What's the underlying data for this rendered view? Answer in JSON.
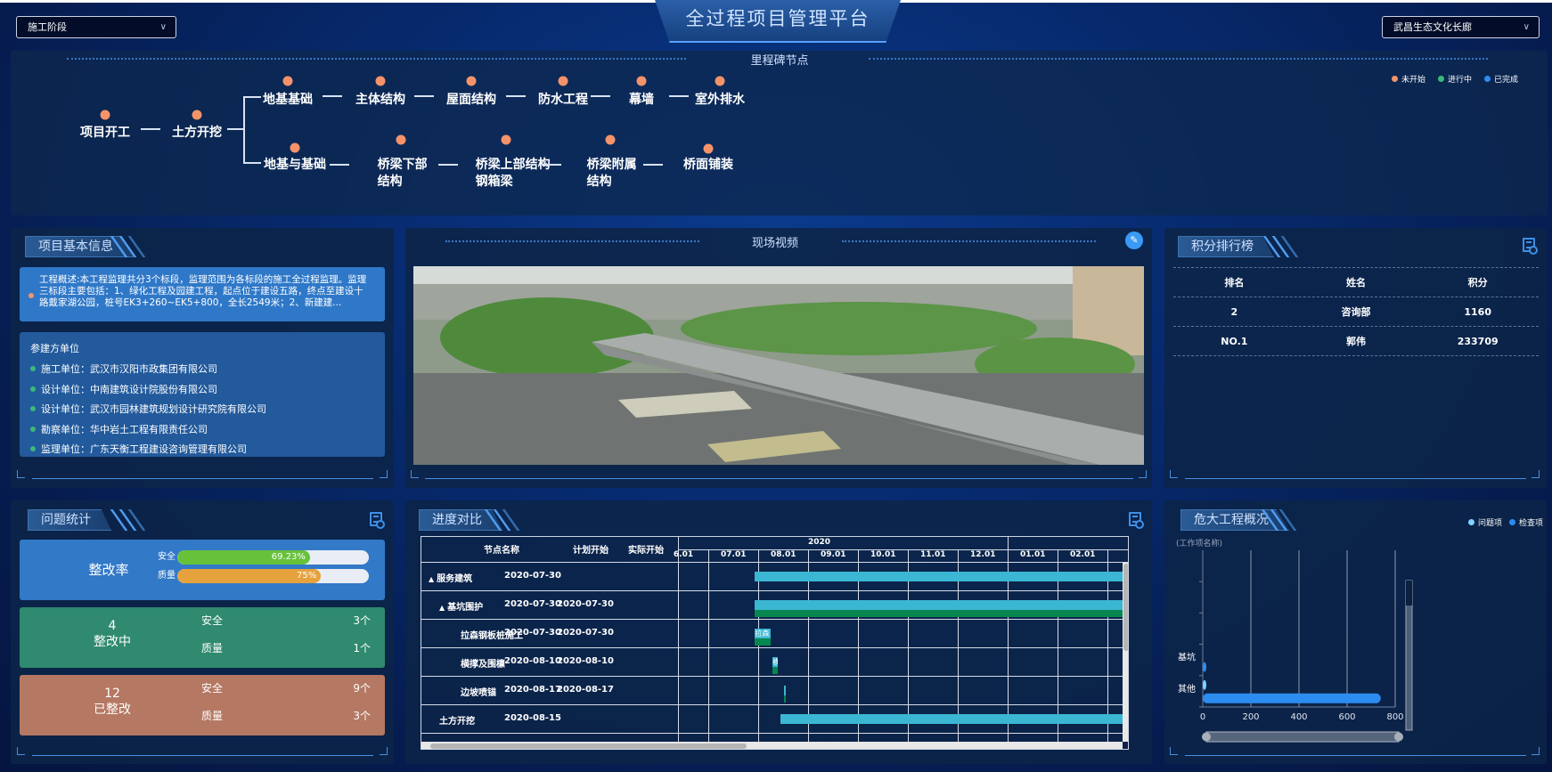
{
  "header": {
    "title": "全过程项目管理平台",
    "stage_select": "施工阶段",
    "project_select": "武昌生态文化长廊"
  },
  "milestones": {
    "title": "里程碑节点",
    "legend": [
      {
        "label": "未开始",
        "color": "#f4936a"
      },
      {
        "label": "进行中",
        "color": "#3cb878"
      },
      {
        "label": "已完成",
        "color": "#2f8cf0"
      }
    ],
    "trunk": [
      {
        "label": "项目开工",
        "status": "未开始"
      },
      {
        "label": "土方开挖",
        "status": "未开始"
      }
    ],
    "branch_top": [
      {
        "label": "地基基础",
        "status": "未开始"
      },
      {
        "label": "主体结构",
        "status": "未开始"
      },
      {
        "label": "屋面结构",
        "status": "未开始"
      },
      {
        "label": "防水工程",
        "status": "未开始"
      },
      {
        "label": "幕墙",
        "status": "未开始"
      },
      {
        "label": "室外排水",
        "status": "未开始"
      }
    ],
    "branch_bottom": [
      {
        "label": "地基与基础",
        "status": "未开始"
      },
      {
        "label": "桥梁下部结构",
        "status": "未开始"
      },
      {
        "label": "桥梁上部结构钢箱梁",
        "status": "未开始"
      },
      {
        "label": "桥梁附属结构",
        "status": "未开始"
      },
      {
        "label": "桥面铺装",
        "status": "未开始"
      }
    ]
  },
  "project_info": {
    "title": "项目基本信息",
    "overview": "工程概述:本工程监理共分3个标段，监理范围为各标段的施工全过程监理。监理三标段主要包括：1、绿化工程及园建工程，起点位于建设五路，终点至建设十路戴家湖公园，桩号EK3+260~EK5+800，全长2549米；2、新建建...",
    "units_title": "参建方单位",
    "units": [
      "施工单位：武汉市汉阳市政集团有限公司",
      "设计单位：中南建筑设计院股份有限公司",
      "设计单位：武汉市园林建筑规划设计研究院有限公司",
      "勘察单位：华中岩土工程有限责任公司",
      "监理单位：广东天衡工程建设咨询管理有限公司"
    ]
  },
  "video": {
    "title": "现场视频",
    "edit_icon": "edit-icon"
  },
  "ranking": {
    "title": "积分排行榜",
    "columns": [
      "排名",
      "姓名",
      "积分"
    ],
    "rows": [
      [
        "2",
        "咨询部",
        "1160"
      ],
      [
        "NO.1",
        "郭伟",
        "233709"
      ]
    ]
  },
  "issues": {
    "title": "问题统计",
    "rate": {
      "label": "整改率",
      "items": [
        {
          "label": "安全",
          "percent": 69.23,
          "text": "69.23%",
          "color": "#67c23a"
        },
        {
          "label": "质量",
          "percent": 75,
          "text": "75%",
          "color": "#e6a23c"
        }
      ]
    },
    "in_progress": {
      "count": "4",
      "label": "整改中",
      "items": [
        {
          "label": "安全",
          "value": "3个"
        },
        {
          "label": "质量",
          "value": "1个"
        }
      ]
    },
    "done": {
      "count": "12",
      "label": "已整改",
      "items": [
        {
          "label": "安全",
          "value": "9个"
        },
        {
          "label": "质量",
          "value": "3个"
        }
      ]
    }
  },
  "progress": {
    "title": "进度对比",
    "columns": [
      "节点名称",
      "计划开始",
      "实际开始"
    ],
    "year": "2020",
    "months": [
      "6.01",
      "07.01",
      "08.01",
      "09.01",
      "10.01",
      "11.01",
      "12.01",
      "01.01",
      "02.01",
      "0"
    ],
    "rows": [
      {
        "name": "服务建筑",
        "level": 0,
        "expand": "▲",
        "plan_start": "2020-07-30",
        "actual_start": "",
        "plan_end": "2021-03-31",
        "actual_end": ""
      },
      {
        "name": "基坑围护",
        "level": 1,
        "expand": "▲",
        "plan_start": "2020-07-30",
        "actual_start": "2020-07-30",
        "plan_end": "2021-03-31",
        "actual_end": "2021-03-31"
      },
      {
        "name": "拉森钢板桩施工",
        "level": 2,
        "expand": "",
        "plan_start": "2020-07-30",
        "actual_start": "2020-07-30",
        "plan_end": "2020-08-09",
        "actual_end": "2020-08-09",
        "bar_label": "拉森"
      },
      {
        "name": "横撑及围檩",
        "level": 2,
        "expand": "",
        "plan_start": "2020-08-10",
        "actual_start": "2020-08-10",
        "plan_end": "2020-08-13",
        "actual_end": "2020-08-13",
        "bar_label": "横"
      },
      {
        "name": "边坡喷锚",
        "level": 2,
        "expand": "",
        "plan_start": "2020-08-17",
        "actual_start": "2020-08-17",
        "plan_end": "2020-08-18",
        "actual_end": "2020-08-18"
      },
      {
        "name": "土方开挖",
        "level": 1,
        "expand": "",
        "plan_start": "2020-08-15",
        "actual_start": "",
        "plan_end": "2021-03-31",
        "actual_end": ""
      }
    ],
    "colors": {
      "plan": "#3bb6d3",
      "actual": "#07874f"
    }
  },
  "hazard": {
    "title": "危大工程概况",
    "chart_data": {
      "type": "bar",
      "orientation": "horizontal",
      "ylabel": "(工作项名称)",
      "categories": [
        "基坑",
        "其他"
      ],
      "series": [
        {
          "name": "问题项",
          "values": [
            0,
            8
          ],
          "color": "#7fd3ff"
        },
        {
          "name": "检查项",
          "values": [
            4,
            740
          ],
          "color": "#2d8cf0"
        }
      ],
      "xlim": [
        0,
        800
      ],
      "xticks": [
        "0",
        "200",
        "400",
        "600",
        "800"
      ],
      "grid": true,
      "legend": "top-right"
    }
  }
}
